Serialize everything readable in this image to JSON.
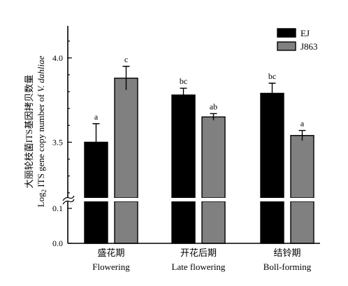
{
  "chart_data": {
    "type": "bar",
    "title": "",
    "categories": [
      {
        "cn": "盛花期",
        "en": "Flowering"
      },
      {
        "cn": "开花后期",
        "en": "Late flowering"
      },
      {
        "cn": "结铃期",
        "en": "Boll-forming"
      }
    ],
    "series": [
      {
        "name": "EJ",
        "color": "#000000",
        "values": [
          3.5,
          3.78,
          3.79
        ],
        "errors": [
          0.11,
          0.04,
          0.06
        ],
        "labels": [
          "a",
          "bc",
          "bc"
        ]
      },
      {
        "name": "J863",
        "color": "#808080",
        "values": [
          3.88,
          3.65,
          3.54
        ],
        "errors": [
          0.07,
          0.02,
          0.03
        ],
        "labels": [
          "c",
          "ab",
          "a"
        ]
      }
    ],
    "ylabel_line1": "大丽轮枝菌ITS基因拷贝数量",
    "ylabel_line2_prefix": "Log",
    "ylabel_line2_sub": "2",
    "ylabel_line2_suffix": " ITS gene copy number of ",
    "ylabel_line2_italic": "V. dahliae",
    "upper_ticks": [
      "3.5",
      "4.0"
    ],
    "lower_ticks": [
      "0.0",
      "0.1"
    ],
    "upper_range": [
      3.17,
      4.19
    ],
    "lower_range": [
      0.0,
      0.12
    ],
    "axis_break": true,
    "legend_position": "top-right"
  }
}
